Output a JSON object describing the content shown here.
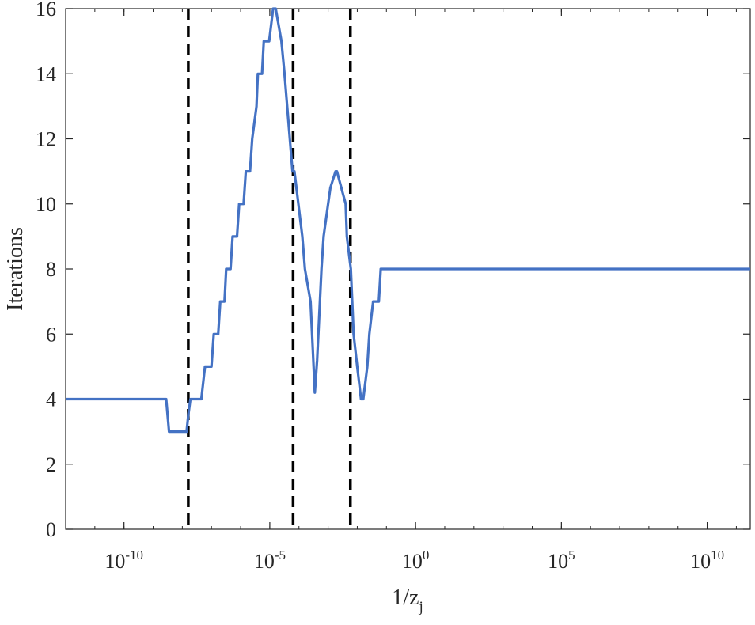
{
  "chart_data": {
    "type": "line",
    "title": "",
    "xlabel": {
      "base": "1/z",
      "subscript": "j"
    },
    "ylabel": "Iterations",
    "xscale": "log",
    "xlim": [
      1e-12,
      300000000000.0
    ],
    "ylim": [
      0,
      16
    ],
    "grid": false,
    "legend": "none",
    "xticks": [
      {
        "value": 1e-10,
        "base": "10",
        "exponent": "-10"
      },
      {
        "value": 1e-05,
        "base": "10",
        "exponent": "-5"
      },
      {
        "value": 1,
        "base": "10",
        "exponent": "0"
      },
      {
        "value": 100000.0,
        "base": "10",
        "exponent": "5"
      },
      {
        "value": 10000000000.0,
        "base": "10",
        "exponent": "10"
      }
    ],
    "yticks": [
      0,
      2,
      4,
      6,
      8,
      10,
      12,
      14,
      16
    ],
    "vlines": [
      1.6e-08,
      6.3e-05,
      0.0058
    ],
    "series": [
      {
        "color": "#4472C4",
        "x": [
          1e-12,
          2.8e-09,
          3.5e-09,
          1.4e-08,
          1.6e-08,
          1.9e-08,
          2.2e-08,
          4.5e-08,
          6e-08,
          1e-07,
          1.2e-07,
          1.7e-07,
          2e-07,
          2.8e-07,
          3.2e-07,
          4.5e-07,
          5.3e-07,
          7.5e-07,
          8.9e-07,
          1.26e-06,
          1.5e-06,
          2.1e-06,
          2.5e-06,
          3.5e-06,
          3.9e-06,
          5.4e-06,
          6.2e-06,
          9.5e-06,
          1.3e-05,
          1.6e-05,
          2.5e-05,
          3.2e-05,
          6e-05,
          7e-05,
          0.00013,
          0.00016,
          0.00025,
          0.00035,
          0.00042,
          0.00059,
          0.0007,
          0.001,
          0.0012,
          0.0018,
          0.002,
          0.004,
          0.0044,
          0.006,
          0.0075,
          0.01,
          0.0135,
          0.016,
          0.022,
          0.026,
          0.035,
          0.055,
          0.064,
          300000000000.0
        ],
        "y": [
          4,
          4,
          3,
          3,
          3.5,
          4,
          4,
          4,
          5,
          5,
          6,
          6,
          7,
          7,
          8,
          8,
          9,
          9,
          10,
          10,
          11,
          11,
          12,
          13,
          14,
          14,
          15,
          15,
          16,
          16,
          15,
          14,
          11,
          11,
          9,
          8,
          7,
          4.2,
          5.2,
          8,
          9,
          10,
          10.5,
          11,
          11,
          10,
          9,
          8,
          6,
          5,
          4,
          4,
          5,
          6,
          7,
          7,
          8,
          8
        ]
      }
    ]
  }
}
